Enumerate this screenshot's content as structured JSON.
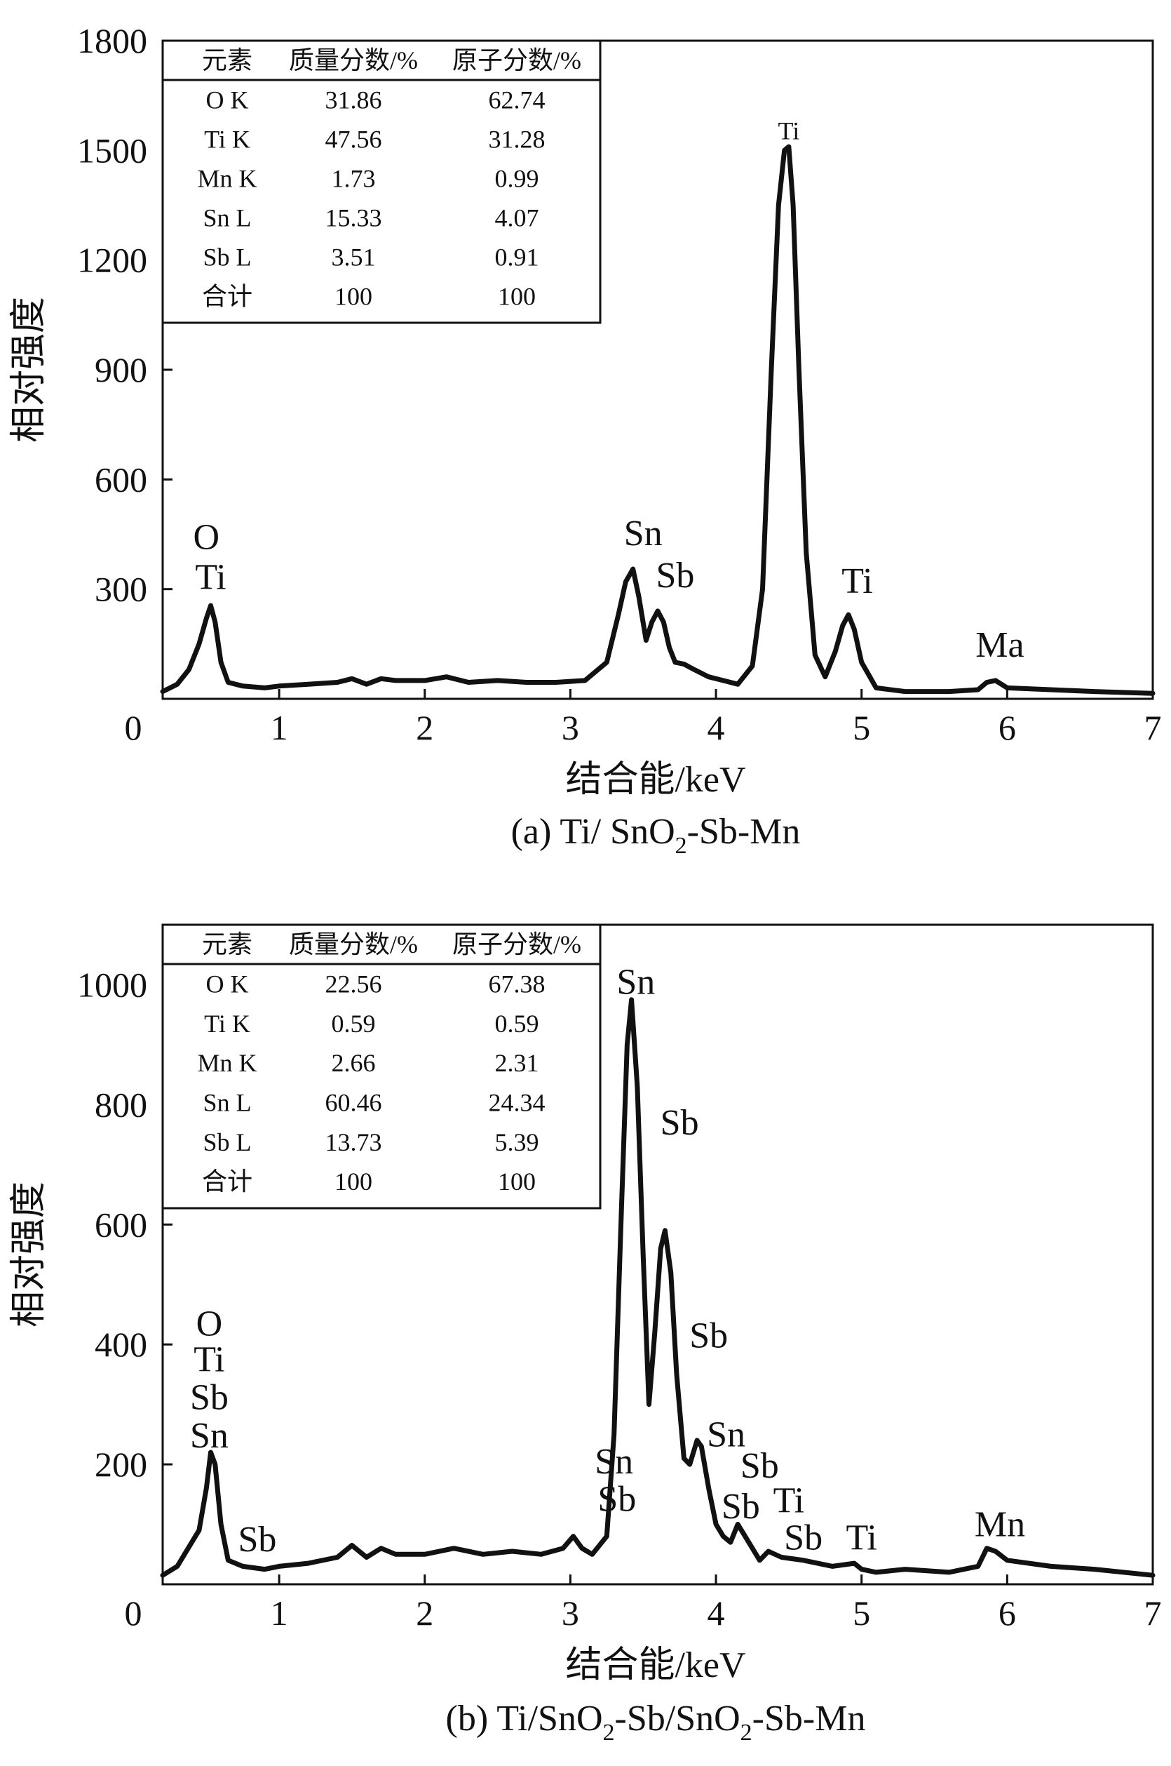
{
  "chart_data": [
    {
      "type": "line",
      "caption_prefix": "(a) Ti/ SnO",
      "caption_sub": "2",
      "caption_suffix": "-Sb-Mn",
      "xlabel": "结合能/keV",
      "ylabel": "相对强度",
      "xlim": [
        0.2,
        7
      ],
      "ylim": [
        0,
        1800
      ],
      "xticks": [
        "0",
        "1",
        "2",
        "3",
        "4",
        "5",
        "6",
        "7"
      ],
      "yticks": [
        "300",
        "600",
        "900",
        "1200",
        "1500",
        "1800"
      ],
      "grid": false,
      "series": [
        {
          "x": [
            0.2,
            0.3,
            0.38,
            0.45,
            0.5,
            0.53,
            0.56,
            0.6,
            0.65,
            0.75,
            0.9,
            1.0,
            1.2,
            1.4,
            1.5,
            1.6,
            1.7,
            1.8,
            2.0,
            2.15,
            2.3,
            2.5,
            2.7,
            2.9,
            3.1,
            3.25,
            3.33,
            3.38,
            3.43,
            3.47,
            3.52,
            3.56,
            3.6,
            3.64,
            3.68,
            3.72,
            3.78,
            3.85,
            3.95,
            4.05,
            4.15,
            4.25,
            4.32,
            4.38,
            4.43,
            4.47,
            4.5,
            4.53,
            4.57,
            4.62,
            4.68,
            4.75,
            4.82,
            4.87,
            4.91,
            4.95,
            5.0,
            5.1,
            5.3,
            5.6,
            5.8,
            5.86,
            5.92,
            6.0,
            6.3,
            6.6,
            7.0
          ],
          "y": [
            20,
            40,
            80,
            150,
            220,
            255,
            210,
            100,
            45,
            35,
            30,
            35,
            40,
            45,
            55,
            40,
            55,
            50,
            50,
            60,
            45,
            50,
            45,
            45,
            50,
            100,
            230,
            320,
            355,
            280,
            160,
            210,
            240,
            210,
            140,
            100,
            95,
            80,
            60,
            50,
            40,
            90,
            300,
            900,
            1350,
            1500,
            1510,
            1350,
            900,
            400,
            120,
            60,
            130,
            200,
            230,
            190,
            100,
            30,
            20,
            20,
            25,
            45,
            50,
            30,
            25,
            20,
            15
          ]
        }
      ],
      "peak_labels": [
        {
          "text": "O",
          "x": 0.5,
          "y": 410
        },
        {
          "text": "Ti",
          "x": 0.53,
          "y": 300
        },
        {
          "text": "Sn",
          "x": 3.5,
          "y": 420
        },
        {
          "text": "Sb",
          "x": 3.72,
          "y": 305
        },
        {
          "text": "Ti",
          "x": 4.5,
          "y": 1530,
          "small": true
        },
        {
          "text": "Ti",
          "x": 4.97,
          "y": 290
        },
        {
          "text": "Ma",
          "x": 5.95,
          "y": 115
        }
      ],
      "table": {
        "headers": [
          "元素",
          "质量分数/%",
          "原子分数/%"
        ],
        "rows": [
          [
            "O K",
            "31.86",
            "62.74"
          ],
          [
            "Ti K",
            "47.56",
            "31.28"
          ],
          [
            "Mn K",
            "1.73",
            "0.99"
          ],
          [
            "Sn L",
            "15.33",
            "4.07"
          ],
          [
            "Sb L",
            "3.51",
            "0.91"
          ],
          [
            "合计",
            "100",
            "100"
          ]
        ]
      }
    },
    {
      "type": "line",
      "caption_prefix": "(b) Ti/SnO",
      "caption_sub": "2",
      "caption_mid": "-Sb/SnO",
      "caption_sub2": "2",
      "caption_suffix": "-Sb-Mn",
      "xlabel": "结合能/keV",
      "ylabel": "相对强度",
      "xlim": [
        0.2,
        7
      ],
      "ylim": [
        0,
        1100
      ],
      "xticks": [
        "0",
        "1",
        "2",
        "3",
        "4",
        "5",
        "6",
        "7"
      ],
      "yticks": [
        "200",
        "400",
        "600",
        "800",
        "1000"
      ],
      "grid": false,
      "series": [
        {
          "x": [
            0.2,
            0.3,
            0.4,
            0.45,
            0.5,
            0.53,
            0.56,
            0.6,
            0.65,
            0.75,
            0.9,
            1.0,
            1.2,
            1.4,
            1.5,
            1.6,
            1.7,
            1.8,
            2.0,
            2.2,
            2.4,
            2.6,
            2.8,
            2.95,
            3.02,
            3.08,
            3.15,
            3.25,
            3.3,
            3.35,
            3.39,
            3.42,
            3.46,
            3.5,
            3.54,
            3.58,
            3.62,
            3.65,
            3.69,
            3.73,
            3.78,
            3.82,
            3.87,
            3.9,
            3.95,
            4.0,
            4.05,
            4.1,
            4.15,
            4.2,
            4.3,
            4.36,
            4.45,
            4.6,
            4.8,
            4.95,
            5.0,
            5.1,
            5.3,
            5.6,
            5.8,
            5.86,
            5.92,
            6.0,
            6.3,
            6.6,
            7.0
          ],
          "y": [
            15,
            30,
            70,
            90,
            160,
            220,
            200,
            100,
            40,
            30,
            25,
            30,
            35,
            45,
            65,
            45,
            60,
            50,
            50,
            60,
            50,
            55,
            50,
            60,
            80,
            60,
            50,
            80,
            250,
            620,
            900,
            975,
            830,
            550,
            300,
            420,
            560,
            590,
            520,
            350,
            210,
            200,
            240,
            230,
            160,
            100,
            80,
            70,
            100,
            80,
            40,
            55,
            45,
            40,
            30,
            35,
            25,
            20,
            25,
            20,
            30,
            60,
            55,
            40,
            30,
            25,
            15
          ]
        }
      ],
      "peak_labels": [
        {
          "text": "O",
          "x": 0.52,
          "y": 415
        },
        {
          "text": "Ti",
          "x": 0.52,
          "y": 355
        },
        {
          "text": "Sb",
          "x": 0.52,
          "y": 292
        },
        {
          "text": "Sn",
          "x": 0.52,
          "y": 228
        },
        {
          "text": "Sb",
          "x": 0.85,
          "y": 55
        },
        {
          "text": "Sn",
          "x": 3.3,
          "y": 185
        },
        {
          "text": "Sb",
          "x": 3.32,
          "y": 122
        },
        {
          "text": "Sn",
          "x": 3.45,
          "y": 985
        },
        {
          "text": "Sb",
          "x": 3.75,
          "y": 750
        },
        {
          "text": "Sb",
          "x": 3.95,
          "y": 395
        },
        {
          "text": "Sn",
          "x": 4.07,
          "y": 230
        },
        {
          "text": "Sb",
          "x": 4.3,
          "y": 178
        },
        {
          "text": "Ti",
          "x": 4.5,
          "y": 120
        },
        {
          "text": "Sb",
          "x": 4.17,
          "y": 110
        },
        {
          "text": "Sb",
          "x": 4.6,
          "y": 58
        },
        {
          "text": "Ti",
          "x": 5.0,
          "y": 58
        },
        {
          "text": "Mn",
          "x": 5.95,
          "y": 80
        }
      ],
      "table": {
        "headers": [
          "元素",
          "质量分数/%",
          "原子分数/%"
        ],
        "rows": [
          [
            "O K",
            "22.56",
            "67.38"
          ],
          [
            "Ti K",
            "0.59",
            "0.59"
          ],
          [
            "Mn K",
            "2.66",
            "2.31"
          ],
          [
            "Sn L",
            "60.46",
            "24.34"
          ],
          [
            "Sb L",
            "13.73",
            "5.39"
          ],
          [
            "合计",
            "100",
            "100"
          ]
        ]
      }
    }
  ]
}
